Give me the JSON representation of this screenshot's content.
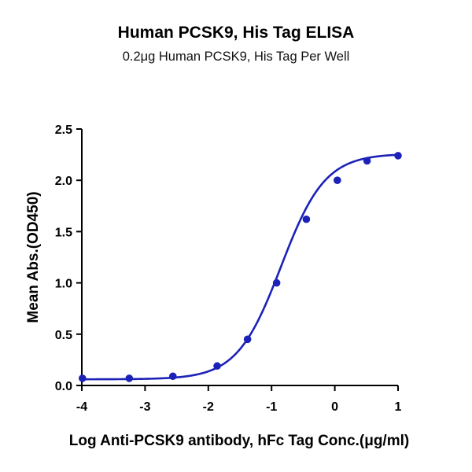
{
  "chart_data": {
    "type": "scatter",
    "title": "Human PCSK9, His Tag ELISA",
    "subtitle": "0.2μg Human PCSK9, His Tag Per Well",
    "xlabel": "Log Anti-PCSK9 antibody, hFc Tag Conc.(μg/ml)",
    "ylabel": "Mean Abs.(OD450)",
    "xlim": [
      -4,
      1
    ],
    "ylim": [
      0,
      2.5
    ],
    "xticks": [
      "-4",
      "-3",
      "-2",
      "-1",
      "0",
      "1"
    ],
    "yticks": [
      "0.0",
      "0.5",
      "1.0",
      "1.5",
      "2.0",
      "2.5"
    ],
    "grid": false,
    "colors": {
      "series": "#1c22b8",
      "axis": "#000000"
    },
    "series": [
      {
        "x": [
          -3.99,
          -3.25,
          -2.56,
          -1.86,
          -1.38,
          -0.92,
          -0.45,
          0.04,
          0.51,
          1.0
        ],
        "y": [
          0.07,
          0.07,
          0.09,
          0.19,
          0.45,
          1.0,
          1.62,
          2.0,
          2.19,
          2.24
        ],
        "fit": {
          "model": "4PL",
          "bottom": 0.06,
          "top": 2.26,
          "logEC50": -0.85,
          "hill": 1.25
        }
      }
    ]
  }
}
